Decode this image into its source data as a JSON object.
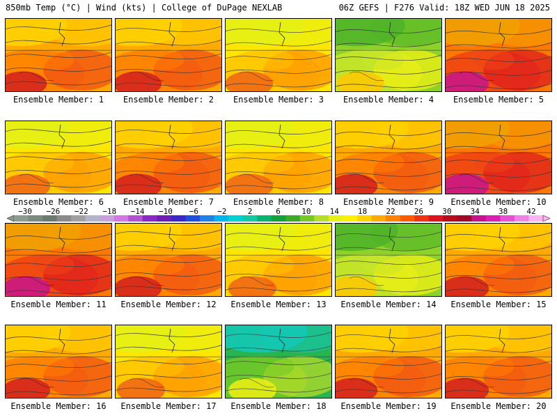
{
  "header": {
    "left": "850mb Temp (°C) | Wind (kts) | College of DuPage NEXLAB",
    "right": "06Z GEFS | F276 Valid: 18Z WED JUN 18 2025"
  },
  "member_label_prefix": "Ensemble Member: ",
  "members": [
    1,
    2,
    3,
    4,
    5,
    6,
    7,
    8,
    9,
    10,
    11,
    12,
    13,
    14,
    15,
    16,
    17,
    18,
    19,
    20
  ],
  "colorbar": {
    "ticks": [
      "−30",
      "−26",
      "−22",
      "−18",
      "−14",
      "−10",
      "−6",
      "−2",
      "2",
      "6",
      "10",
      "14",
      "18",
      "22",
      "26",
      "30",
      "34",
      "38",
      "42"
    ],
    "colors": [
      "#8c9a90",
      "#7a8a80",
      "#6c7a70",
      "#8a8a8a",
      "#a0a0a0",
      "#b4b4c8",
      "#c8a0dc",
      "#d278e6",
      "#b450d2",
      "#8c28c8",
      "#6e1eb4",
      "#3c28c8",
      "#1e50dc",
      "#1e82e6",
      "#00b4f0",
      "#00d2d2",
      "#14c8a0",
      "#0ab46e",
      "#14a03c",
      "#3caa28",
      "#78c828",
      "#b4dc28",
      "#e6f014",
      "#fff000",
      "#ffd200",
      "#ffaa00",
      "#ff8200",
      "#ff5a00",
      "#f03214",
      "#dc141e",
      "#b90a1e",
      "#a00a28",
      "#c8148c",
      "#dc1eb4",
      "#e650d2",
      "#f082e6",
      "#fab4f0"
    ]
  }
}
